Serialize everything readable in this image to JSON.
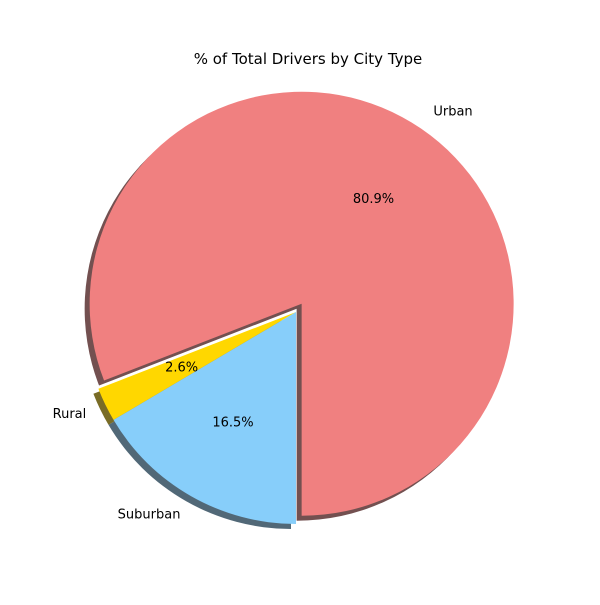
{
  "chart_data": {
    "type": "pie",
    "title": "% of Total Drivers by City Type",
    "slices": [
      {
        "label": "Urban",
        "value": 80.9,
        "pct_text": "80.9%",
        "color": "#F08080",
        "exploded": true
      },
      {
        "label": "Rural",
        "value": 2.6,
        "pct_text": "2.6%",
        "color": "#FFD700",
        "exploded": false
      },
      {
        "label": "Suburban",
        "value": 16.5,
        "pct_text": "16.5%",
        "color": "#87CEFA",
        "exploded": false
      }
    ],
    "shadow": true,
    "legend": "none"
  }
}
